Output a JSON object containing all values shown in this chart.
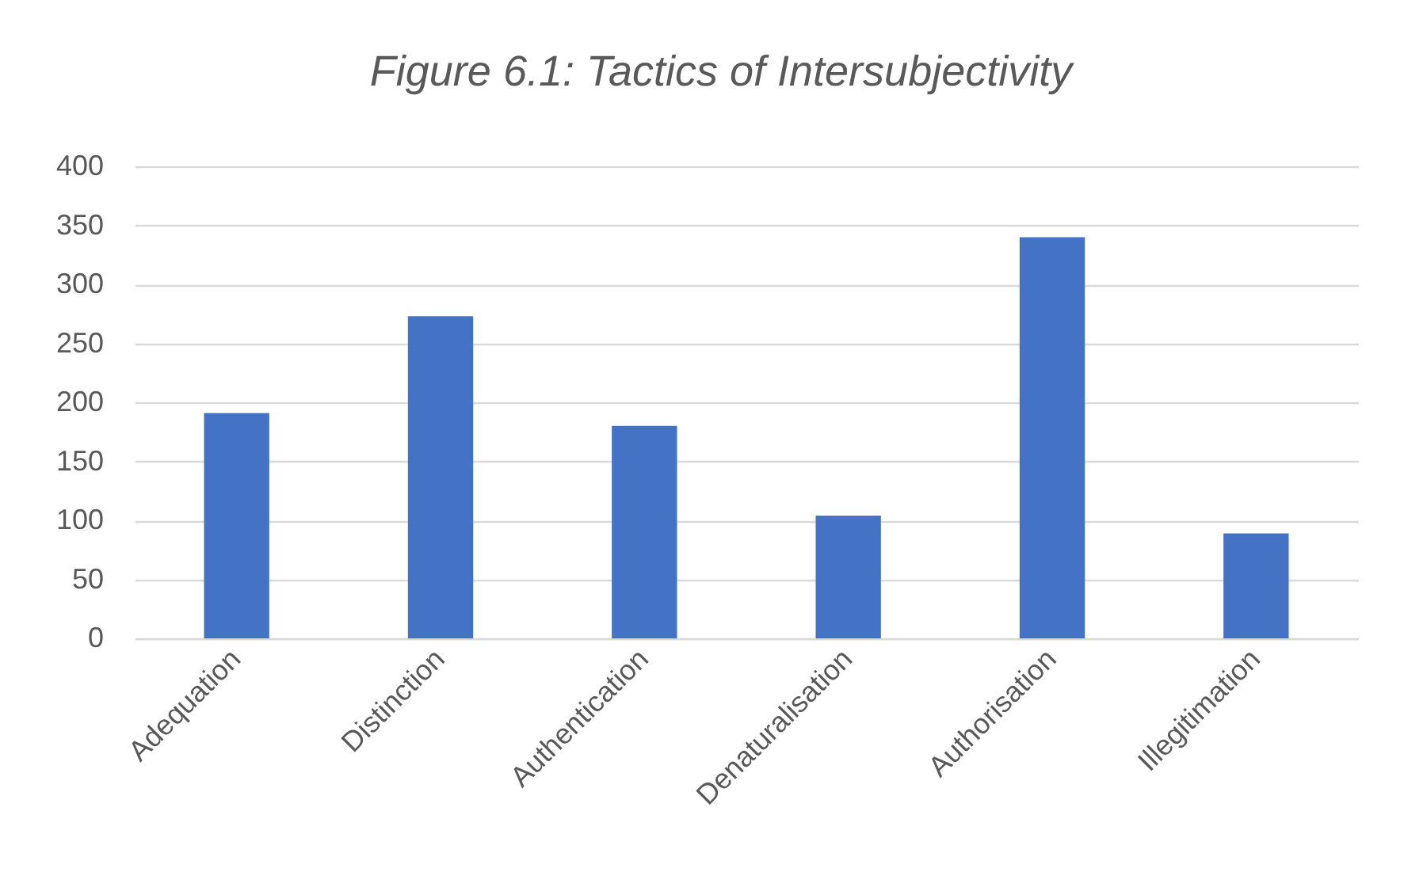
{
  "chart_data": {
    "type": "bar",
    "title": "Figure 6.1: Tactics of Intersubjectivity",
    "categories": [
      "Adequation",
      "Distinction",
      "Authentication",
      "Denaturalisation",
      "Authorisation",
      "Illegitimation"
    ],
    "values": [
      191,
      273,
      180,
      104,
      340,
      89
    ],
    "color": "#4472c4",
    "ylim": [
      0,
      400
    ],
    "yticks": [
      0,
      50,
      100,
      150,
      200,
      250,
      300,
      350,
      400
    ],
    "grid": "y"
  }
}
